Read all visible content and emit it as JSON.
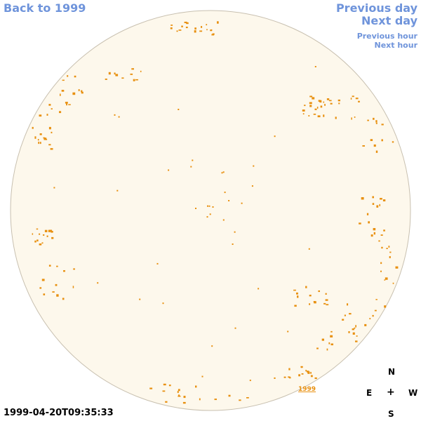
{
  "nav": {
    "back_label": "Back to 1999",
    "prev_day": "Previous day",
    "next_day": "Next day",
    "prev_hour": "Previous hour",
    "next_hour": "Next hour"
  },
  "timestamp": "1999-04-20T09:35:33",
  "compass": {
    "n": "N",
    "e": "E",
    "w": "W",
    "s": "S",
    "center": "+"
  },
  "region_label": "1999",
  "colors": {
    "link": "#6f94db",
    "disk_fill": "#fdf8ec",
    "disk_edge": "#c8c0b0",
    "feature": "#e8900f"
  }
}
